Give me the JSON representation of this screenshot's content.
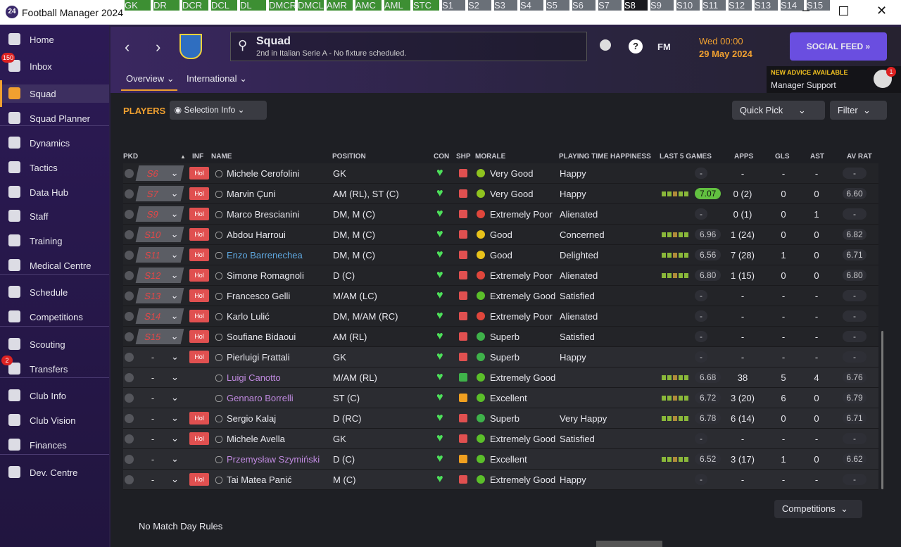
{
  "window": {
    "title": "Football Manager 2024"
  },
  "sidebar": {
    "items": [
      {
        "label": "Home"
      },
      {
        "label": "Inbox",
        "badge": "150"
      },
      {
        "label": "Squad"
      },
      {
        "label": "Squad Planner"
      },
      {
        "label": "Dynamics"
      },
      {
        "label": "Tactics"
      },
      {
        "label": "Data Hub"
      },
      {
        "label": "Staff"
      },
      {
        "label": "Training"
      },
      {
        "label": "Medical Centre"
      },
      {
        "label": "Schedule"
      },
      {
        "label": "Competitions"
      },
      {
        "label": "Scouting"
      },
      {
        "label": "Transfers",
        "badge": "2"
      },
      {
        "label": "Club Info"
      },
      {
        "label": "Club Vision"
      },
      {
        "label": "Finances"
      },
      {
        "label": "Dev. Centre"
      }
    ]
  },
  "header": {
    "title": "Squad",
    "subtitle": "2nd in Italian Serie A - No fixture scheduled.",
    "fm": "FM",
    "day_time": "Wed 00:00",
    "date": "29 May 2024",
    "social": "SOCIAL FEED",
    "advice_title": "NEW ADVICE AVAILABLE",
    "advice_text": "Manager Support",
    "advice_badge": "1",
    "tabs": [
      "Overview",
      "International"
    ]
  },
  "toolbar": {
    "players": "PLAYERS",
    "selection": "Selection Info",
    "quick_pick": "Quick Pick",
    "filter": "Filter",
    "positions": [
      "GK",
      "DR",
      "DCR",
      "DCL",
      "DL",
      "DMCR",
      "DMCL",
      "AMR",
      "AMC",
      "AML",
      "STC",
      "S1",
      "S2",
      "S3",
      "S4",
      "S5",
      "S6",
      "S7",
      "S8",
      "S9",
      "S10",
      "S11",
      "S12",
      "S13",
      "S14",
      "S15"
    ]
  },
  "table": {
    "columns": [
      "PKD",
      "INF",
      "NAME",
      "POSITION",
      "CON",
      "SHP",
      "MORALE",
      "PLAYING TIME HAPPINESS",
      "LAST 5 GAMES",
      "APPS",
      "GLS",
      "AST",
      "AV RAT"
    ],
    "rows": [
      {
        "pkd": "S6",
        "inf": "Hol",
        "name": "Michele Cerofolini",
        "position": "GK",
        "morale": "Very Good",
        "morale_color": "#8fc31f",
        "happiness": "Happy",
        "rating": "-",
        "apps": "-",
        "gls": "-",
        "ast": "-",
        "av_rat": "-"
      },
      {
        "pkd": "S7",
        "inf": "Hol",
        "name": "Marvin Çuni",
        "position": "AM (RL), ST (C)",
        "morale": "Very Good",
        "morale_color": "#8fc31f",
        "happiness": "Happy",
        "rating": "7.07",
        "apps": "0 (2)",
        "gls": "0",
        "ast": "0",
        "av_rat": "6.60"
      },
      {
        "pkd": "S9",
        "inf": "Hol",
        "name": "Marco Brescianini",
        "position": "DM, M (C)",
        "morale": "Extremely Poor",
        "morale_color": "#e0463c",
        "happiness": "Alienated",
        "rating": "-",
        "apps": "0 (1)",
        "gls": "0",
        "ast": "1",
        "av_rat": "-"
      },
      {
        "pkd": "S10",
        "inf": "Hol",
        "name": "Abdou Harroui",
        "position": "DM, M (C)",
        "morale": "Good",
        "morale_color": "#e8c21a",
        "happiness": "Concerned",
        "rating": "6.96",
        "apps": "1 (24)",
        "gls": "0",
        "ast": "0",
        "av_rat": "6.82"
      },
      {
        "pkd": "S11",
        "inf": "Hol",
        "name": "Enzo Barrenechea",
        "name_color": "#5fa8e0",
        "position": "DM, M (C)",
        "morale": "Good",
        "morale_color": "#e8c21a",
        "happiness": "Delighted",
        "rating": "6.56",
        "apps": "7 (28)",
        "gls": "1",
        "ast": "0",
        "av_rat": "6.71"
      },
      {
        "pkd": "S12",
        "inf": "Hol",
        "name": "Simone Romagnoli",
        "position": "D (C)",
        "morale": "Extremely Poor",
        "morale_color": "#e0463c",
        "happiness": "Alienated",
        "rating": "6.80",
        "apps": "1 (15)",
        "gls": "0",
        "ast": "0",
        "av_rat": "6.80"
      },
      {
        "pkd": "S13",
        "inf": "Hol",
        "name": "Francesco Gelli",
        "position": "M/AM (LC)",
        "morale": "Extremely Good",
        "morale_color": "#5bbf2a",
        "happiness": "Satisfied",
        "rating": "-",
        "apps": "-",
        "gls": "-",
        "ast": "-",
        "av_rat": "-"
      },
      {
        "pkd": "S14",
        "inf": "Hol",
        "name": "Karlo Lulić",
        "position": "DM, M/AM (RC)",
        "morale": "Extremely Poor",
        "morale_color": "#e0463c",
        "happiness": "Alienated",
        "rating": "-",
        "apps": "-",
        "gls": "-",
        "ast": "-",
        "av_rat": "-"
      },
      {
        "pkd": "S15",
        "inf": "Hol",
        "name": "Soufiane Bidaoui",
        "position": "AM (RL)",
        "morale": "Superb",
        "morale_color": "#3fb24a",
        "happiness": "Satisfied",
        "rating": "-",
        "apps": "-",
        "gls": "-",
        "ast": "-",
        "av_rat": "-"
      },
      {
        "pkd": "-",
        "inf": "Hol",
        "name": "Pierluigi Frattali",
        "position": "GK",
        "morale": "Superb",
        "morale_color": "#3fb24a",
        "happiness": "Happy",
        "rating": "-",
        "apps": "-",
        "gls": "-",
        "ast": "-",
        "av_rat": "-"
      },
      {
        "pkd": "-",
        "name": "Luigi Canotto",
        "name_color": "#c08ae0",
        "shp_color": "#3fb24a",
        "position": "M/AM (RL)",
        "morale": "Extremely Good",
        "morale_color": "#5bbf2a",
        "rating": "6.68",
        "apps": "38",
        "gls": "5",
        "ast": "4",
        "av_rat": "6.76"
      },
      {
        "pkd": "-",
        "name": "Gennaro Borrelli",
        "name_color": "#c08ae0",
        "shp_color": "#f0a020",
        "position": "ST (C)",
        "morale": "Excellent",
        "morale_color": "#5bbf2a",
        "rating": "6.72",
        "apps": "3 (20)",
        "gls": "6",
        "ast": "0",
        "av_rat": "6.79"
      },
      {
        "pkd": "-",
        "inf": "Hol",
        "name": "Sergio Kalaj",
        "position": "D (RC)",
        "morale": "Superb",
        "morale_color": "#3fb24a",
        "happiness": "Very Happy",
        "rating": "6.78",
        "apps": "6 (14)",
        "gls": "0",
        "ast": "0",
        "av_rat": "6.71"
      },
      {
        "pkd": "-",
        "inf": "Hol",
        "name": "Michele Avella",
        "position": "GK",
        "morale": "Extremely Good",
        "morale_color": "#5bbf2a",
        "happiness": "Satisfied",
        "rating": "-",
        "apps": "-",
        "gls": "-",
        "ast": "-",
        "av_rat": "-"
      },
      {
        "pkd": "-",
        "name": "Przemysław Szymiński",
        "name_color": "#c08ae0",
        "shp_color": "#f0a020",
        "position": "D (C)",
        "morale": "Excellent",
        "morale_color": "#5bbf2a",
        "rating": "6.52",
        "apps": "3 (17)",
        "gls": "1",
        "ast": "0",
        "av_rat": "6.62"
      },
      {
        "pkd": "-",
        "inf": "Hol",
        "name": "Tai Matea Panić",
        "position": "M (C)",
        "morale": "Extremely Good",
        "morale_color": "#5bbf2a",
        "happiness": "Happy",
        "rating": "-",
        "apps": "-",
        "gls": "-",
        "ast": "-",
        "av_rat": "-"
      }
    ]
  },
  "footer": {
    "competitions": "Competitions",
    "rules": "No Match Day Rules"
  }
}
